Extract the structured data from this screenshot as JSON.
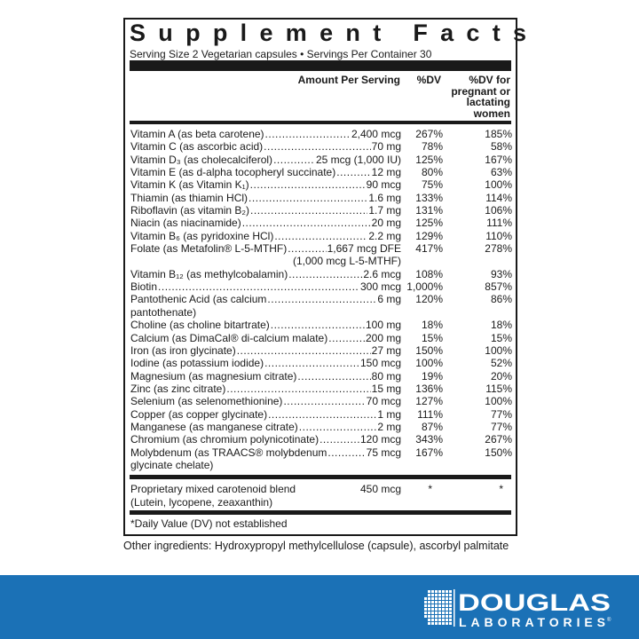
{
  "panel": {
    "title": "Supplement Facts",
    "serving": "Serving Size 2 Vegetarian capsules • Servings Per Container 30",
    "headers": {
      "amount": "Amount Per Serving",
      "dv": "%DV",
      "pregnant": "%DV for pregnant or lactating women"
    },
    "rows": [
      {
        "name": "Vitamin A (as beta carotene)",
        "amount": "2,400 mcg",
        "dv": "267%",
        "pregnant": "185%"
      },
      {
        "name": "Vitamin C (as ascorbic acid)",
        "amount": "70 mg",
        "dv": "78%",
        "pregnant": "58%"
      },
      {
        "name": "Vitamin D₃ (as cholecalciferol)",
        "amount": "25 mcg (1,000 IU)",
        "dv": "125%",
        "pregnant": "167%"
      },
      {
        "name": "Vitamin E (as d-alpha tocopheryl succinate)",
        "amount": "12 mg",
        "dv": "80%",
        "pregnant": "63%"
      },
      {
        "name": "Vitamin K (as Vitamin K₁)",
        "amount": "90 mcg",
        "dv": "75%",
        "pregnant": "100%"
      },
      {
        "name": "Thiamin (as thiamin HCl)",
        "amount": "1.6 mg",
        "dv": "133%",
        "pregnant": "114%"
      },
      {
        "name": "Riboflavin (as vitamin B₂)",
        "amount": "1.7 mg",
        "dv": "131%",
        "pregnant": "106%"
      },
      {
        "name": "Niacin (as niacinamide)",
        "amount": "20 mg",
        "dv": "125%",
        "pregnant": "111%"
      },
      {
        "name": "Vitamin B₆ (as pyridoxine HCl)",
        "amount": "2.2 mg",
        "dv": "129%",
        "pregnant": "110%"
      },
      {
        "name": "Folate (as Metafolin® L-5-MTHF)",
        "amount": "1,667 mcg DFE",
        "extra": "(1,000 mcg L-5-MTHF)",
        "extra_align": "right",
        "dv": "417%",
        "pregnant": "278%"
      },
      {
        "name": "Vitamin B₁₂ (as methylcobalamin)",
        "amount": "2.6 mcg",
        "dv": "108%",
        "pregnant": "93%"
      },
      {
        "name": "Biotin",
        "amount": "300 mcg",
        "dv": "1,000%",
        "pregnant": "857%"
      },
      {
        "name": "Pantothenic Acid (as calcium",
        "amount": "6 mg",
        "extra": "pantothenate)",
        "extra_align": "left",
        "dv": "120%",
        "pregnant": "86%"
      },
      {
        "name": "Choline (as choline bitartrate)",
        "amount": "100 mg",
        "dv": "18%",
        "pregnant": "18%"
      },
      {
        "name": "Calcium (as DimaCal® di-calcium malate)",
        "amount": "200 mg",
        "dv": "15%",
        "pregnant": "15%"
      },
      {
        "name": "Iron (as iron glycinate)",
        "amount": "27 mg",
        "dv": "150%",
        "pregnant": "100%"
      },
      {
        "name": "Iodine (as potassium iodide)",
        "amount": "150 mcg",
        "dv": "100%",
        "pregnant": "52%"
      },
      {
        "name": "Magnesium (as magnesium citrate)",
        "amount": "80 mg",
        "dv": "19%",
        "pregnant": "20%"
      },
      {
        "name": "Zinc (as zinc citrate)",
        "amount": "15 mg",
        "dv": "136%",
        "pregnant": "115%"
      },
      {
        "name": "Selenium (as selenomethionine)",
        "amount": "70 mcg",
        "dv": "127%",
        "pregnant": "100%"
      },
      {
        "name": "Copper (as copper glycinate)",
        "amount": "1 mg",
        "dv": "111%",
        "pregnant": "77%"
      },
      {
        "name": "Manganese (as manganese citrate)",
        "amount": "2 mg",
        "dv": "87%",
        "pregnant": "77%"
      },
      {
        "name": "Chromium (as chromium polynicotinate)",
        "amount": "120 mcg",
        "dv": "343%",
        "pregnant": "267%"
      },
      {
        "name": "Molybdenum (as TRAACS® molybdenum",
        "amount": "75 mcg",
        "extra": "glycinate chelate)",
        "extra_align": "left",
        "dv": "167%",
        "pregnant": "150%"
      }
    ],
    "proprietary": {
      "name": "Proprietary mixed carotenoid blend",
      "sub": "(Lutein, lycopene, zeaxanthin)",
      "amount": "450 mcg",
      "dv": "*",
      "pregnant": "*"
    },
    "footnote": "*Daily Value (DV) not established"
  },
  "other_ingredients": "Other ingredients: Hydroxypropyl methylcellulose (capsule), ascorbyl palmitate",
  "brand": {
    "line1": "DOUGLAS",
    "line2": "LABORATORIES",
    "mark": "®",
    "band_color": "#1b71b6"
  }
}
